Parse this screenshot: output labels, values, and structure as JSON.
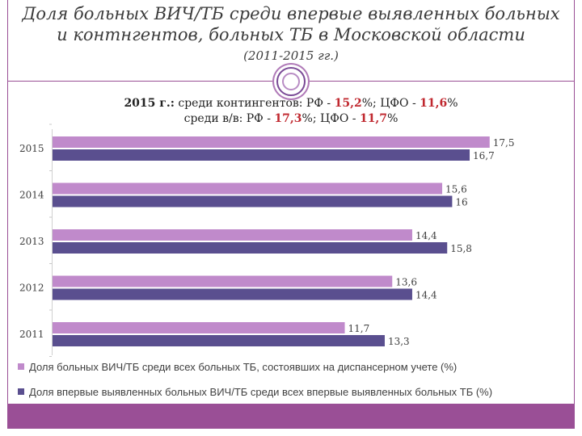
{
  "title_line1": "Доля больных ВИЧ/ТБ среди впервые выявленных больных",
  "title_line2": "и контнгентов, больных ТБ в Московской области",
  "subtitle": "(2011-2015 гг.)",
  "info": {
    "line1_year": "2015 г.:",
    "line1_text1": " среди контингентов: РФ - ",
    "line1_val1": "15,2",
    "line1_text2": "%; ЦФО - ",
    "line1_val2": "11,6",
    "line1_text3": "%",
    "line2_text1": "среди в/в: РФ - ",
    "line2_val1": "17,3",
    "line2_text2": "%; ЦФО - ",
    "line2_val2": "11,7",
    "line2_text3": "%"
  },
  "colors": {
    "frame": "#9a4f96",
    "series_contingents": "#c08acb",
    "series_new": "#5a4f8f",
    "accent_red": "#c0282f"
  },
  "chart_data": {
    "type": "bar",
    "orientation": "horizontal",
    "categories": [
      "2015",
      "2014",
      "2013",
      "2012",
      "2011"
    ],
    "series": [
      {
        "name": "Доля больных ВИЧ/ТБ среди всех больных ТБ, состоявших на диспансерном учете (%)",
        "values": [
          17.5,
          15.6,
          14.4,
          13.6,
          11.7
        ],
        "labels": [
          "17,5",
          "15,6",
          "14,4",
          "13,6",
          "11,7"
        ]
      },
      {
        "name": "Доля впервые выявленных больных ВИЧ/ТБ среди всех впервые выявленных больных ТБ (%)",
        "values": [
          16.7,
          16.0,
          15.8,
          14.4,
          13.3
        ],
        "labels": [
          "16,7",
          "16",
          "15,8",
          "14,4",
          "13,3"
        ]
      }
    ],
    "xlim": [
      0,
      18
    ],
    "grid": false,
    "legend_position": "bottom"
  }
}
